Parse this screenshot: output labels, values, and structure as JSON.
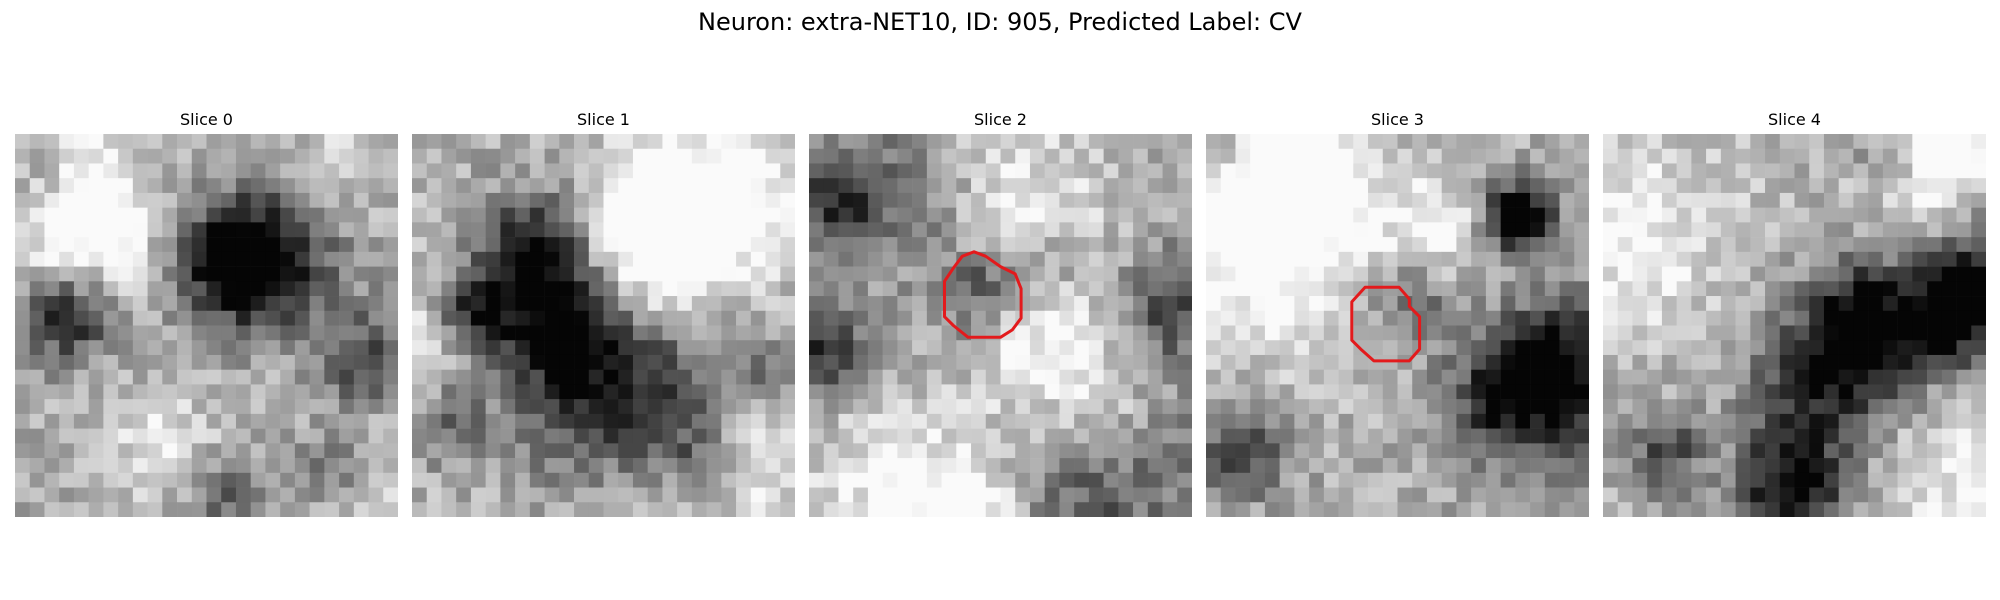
{
  "figure": {
    "title": "Neuron: extra-NET10, ID: 905, Predicted Label: CV"
  },
  "slices": [
    {
      "title": "Slice 0",
      "has_contour": false
    },
    {
      "title": "Slice 1",
      "has_contour": false
    },
    {
      "title": "Slice 2",
      "has_contour": true
    },
    {
      "title": "Slice 3",
      "has_contour": true
    },
    {
      "title": "Slice 4",
      "has_contour": false
    }
  ],
  "colors": {
    "contour": "#e31a1c",
    "colormap": "grayscale"
  }
}
